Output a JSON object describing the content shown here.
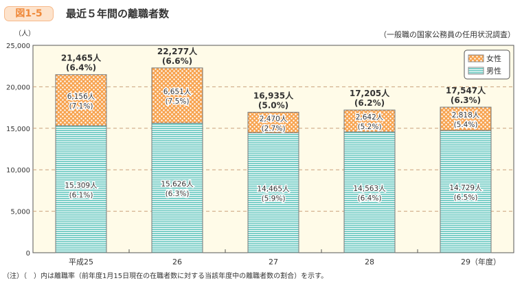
{
  "header": {
    "figure_label": "図1-5",
    "title": "最近５年間の離職者数",
    "source": "（一般職の国家公務員の任用状況調査）"
  },
  "note": "（注）（　）内は離職率（前年度1月15日現在の在職者数に対する当該年度中の離職者数の割合）を示す。",
  "chart_data": {
    "type": "bar",
    "stacked": true,
    "ylabel": "（人）",
    "ylim": [
      0,
      25000
    ],
    "yticks": [
      "0",
      "5,000",
      "10,000",
      "15,000",
      "20,000",
      "25,000"
    ],
    "categories": [
      "平成25",
      "26",
      "27",
      "28",
      "29（年度）"
    ],
    "grid": true,
    "legend_placement": "top-right",
    "series": [
      {
        "name": "男性",
        "color": "#7ccfc8",
        "values": [
          15309,
          15626,
          14465,
          14563,
          14729
        ],
        "labels": [
          "15,309人",
          "15,626人",
          "14,465人",
          "14,563人",
          "14,729人"
        ],
        "rates": [
          "(6.1%)",
          "(6.3%)",
          "(5.9%)",
          "(6.4%)",
          "(6.5%)"
        ]
      },
      {
        "name": "女性",
        "color": "#f5a04a",
        "values": [
          6156,
          6651,
          2470,
          2642,
          2818
        ],
        "labels": [
          "6,156人",
          "6,651人",
          "2,470人",
          "2,642人",
          "2,818人"
        ],
        "rates": [
          "(7.1%)",
          "(7.5%)",
          "(2.7%)",
          "(5.2%)",
          "(5.4%)"
        ]
      }
    ],
    "totals": {
      "labels": [
        "21,465人",
        "22,277人",
        "16,935人",
        "17,205人",
        "17,547人"
      ],
      "rates": [
        "(6.4%)",
        "(6.6%)",
        "(5.0%)",
        "(6.2%)",
        "(6.3%)"
      ]
    }
  }
}
